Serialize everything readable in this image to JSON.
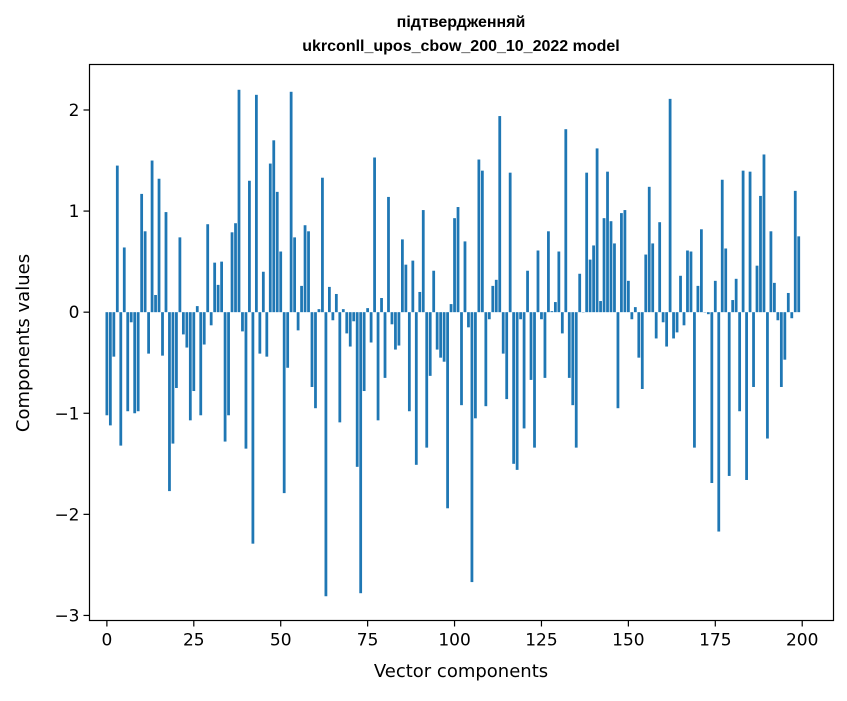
{
  "chart_data": {
    "type": "bar",
    "title": "підтвердженняй",
    "subtitle": "ukrconll_upos_cbow_200_10_2022 model",
    "xlabel": "Vector components",
    "ylabel": "Components values",
    "xlim": [
      -5,
      209
    ],
    "ylim": [
      -3.05,
      2.45
    ],
    "xticks": [
      0,
      25,
      50,
      75,
      100,
      125,
      150,
      175,
      200
    ],
    "yticks": [
      -3,
      -2,
      -1,
      0,
      1,
      2
    ],
    "xtick_labels": [
      "0",
      "25",
      "50",
      "75",
      "100",
      "125",
      "150",
      "175",
      "200"
    ],
    "ytick_labels": [
      "−3",
      "−2",
      "−1",
      "0",
      "1",
      "2"
    ],
    "bar_color": "#1f77b4",
    "grid": false,
    "legend": "none",
    "x": [
      0,
      1,
      2,
      3,
      4,
      5,
      6,
      7,
      8,
      9,
      10,
      11,
      12,
      13,
      14,
      15,
      16,
      17,
      18,
      19,
      20,
      21,
      22,
      23,
      24,
      25,
      26,
      27,
      28,
      29,
      30,
      31,
      32,
      33,
      34,
      35,
      36,
      37,
      38,
      39,
      40,
      41,
      42,
      43,
      44,
      45,
      46,
      47,
      48,
      49,
      50,
      51,
      52,
      53,
      54,
      55,
      56,
      57,
      58,
      59,
      60,
      61,
      62,
      63,
      64,
      65,
      66,
      67,
      68,
      69,
      70,
      71,
      72,
      73,
      74,
      75,
      76,
      77,
      78,
      79,
      80,
      81,
      82,
      83,
      84,
      85,
      86,
      87,
      88,
      89,
      90,
      91,
      92,
      93,
      94,
      95,
      96,
      97,
      98,
      99,
      100,
      101,
      102,
      103,
      104,
      105,
      106,
      107,
      108,
      109,
      110,
      111,
      112,
      113,
      114,
      115,
      116,
      117,
      118,
      119,
      120,
      121,
      122,
      123,
      124,
      125,
      126,
      127,
      128,
      129,
      130,
      131,
      132,
      133,
      134,
      135,
      136,
      137,
      138,
      139,
      140,
      141,
      142,
      143,
      144,
      145,
      146,
      147,
      148,
      149,
      150,
      151,
      152,
      153,
      154,
      155,
      156,
      157,
      158,
      159,
      160,
      161,
      162,
      163,
      164,
      165,
      166,
      167,
      168,
      169,
      170,
      171,
      172,
      173,
      174,
      175,
      176,
      177,
      178,
      179,
      180,
      181,
      182,
      183,
      184,
      185,
      186,
      187,
      188,
      189,
      190,
      191,
      192,
      193,
      194,
      195,
      196,
      197,
      198,
      199
    ],
    "values": [
      -1.02,
      -1.12,
      -0.44,
      1.45,
      -1.32,
      0.64,
      -0.98,
      -0.1,
      -1.0,
      -0.98,
      1.17,
      0.8,
      -0.41,
      1.5,
      0.17,
      1.32,
      -0.43,
      0.99,
      -1.77,
      -1.3,
      -0.75,
      0.74,
      -0.22,
      -0.35,
      -1.07,
      -0.78,
      0.06,
      -1.02,
      -0.32,
      0.87,
      -0.13,
      0.49,
      0.27,
      0.5,
      -1.28,
      -1.02,
      0.79,
      0.88,
      2.2,
      -0.19,
      -1.35,
      1.3,
      -2.29,
      2.15,
      -0.41,
      0.4,
      -0.44,
      1.47,
      1.7,
      1.19,
      0.6,
      -1.79,
      -0.55,
      2.18,
      0.74,
      -0.18,
      0.26,
      0.86,
      0.8,
      -0.74,
      -0.95,
      0.03,
      1.33,
      -2.81,
      0.25,
      -0.08,
      0.18,
      -1.09,
      0.03,
      -0.21,
      -0.34,
      -0.09,
      -1.53,
      -2.78,
      -0.78,
      0.04,
      -0.3,
      1.53,
      -1.07,
      0.14,
      -0.65,
      1.14,
      -0.12,
      -0.37,
      -0.33,
      0.72,
      0.47,
      -0.98,
      0.51,
      -1.51,
      0.2,
      1.01,
      -1.34,
      -0.63,
      0.41,
      -0.37,
      -0.45,
      -0.49,
      -1.94,
      0.08,
      0.93,
      1.04,
      -0.92,
      0.7,
      -0.15,
      -2.67,
      -1.05,
      1.51,
      1.4,
      -0.93,
      -0.07,
      0.26,
      0.32,
      1.94,
      -0.41,
      -0.86,
      1.38,
      -1.5,
      -1.56,
      -0.07,
      -1.15,
      0.41,
      -0.67,
      -1.34,
      0.61,
      -0.07,
      -0.65,
      0.8,
      0.01,
      0.1,
      0.6,
      -0.21,
      1.81,
      -0.65,
      -0.92,
      -1.34,
      0.38,
      0.0,
      1.38,
      0.52,
      0.66,
      1.62,
      0.11,
      0.93,
      1.39,
      0.9,
      0.68,
      -0.95,
      0.98,
      1.01,
      0.31,
      -0.07,
      0.05,
      -0.45,
      -0.76,
      0.57,
      1.24,
      0.68,
      -0.26,
      0.89,
      -0.1,
      -0.34,
      2.11,
      -0.26,
      -0.2,
      0.36,
      -0.13,
      0.61,
      0.6,
      -1.34,
      0.26,
      0.82,
      0.0,
      -0.02,
      -1.69,
      0.31,
      -2.17,
      1.31,
      0.63,
      -1.62,
      0.12,
      0.33,
      -0.98,
      1.4,
      -1.66,
      1.39,
      -0.74,
      0.46,
      1.15,
      1.56,
      -1.25,
      0.8,
      0.29,
      -0.08,
      -0.74,
      -0.47,
      0.19,
      -0.06,
      1.2,
      0.75
    ]
  }
}
